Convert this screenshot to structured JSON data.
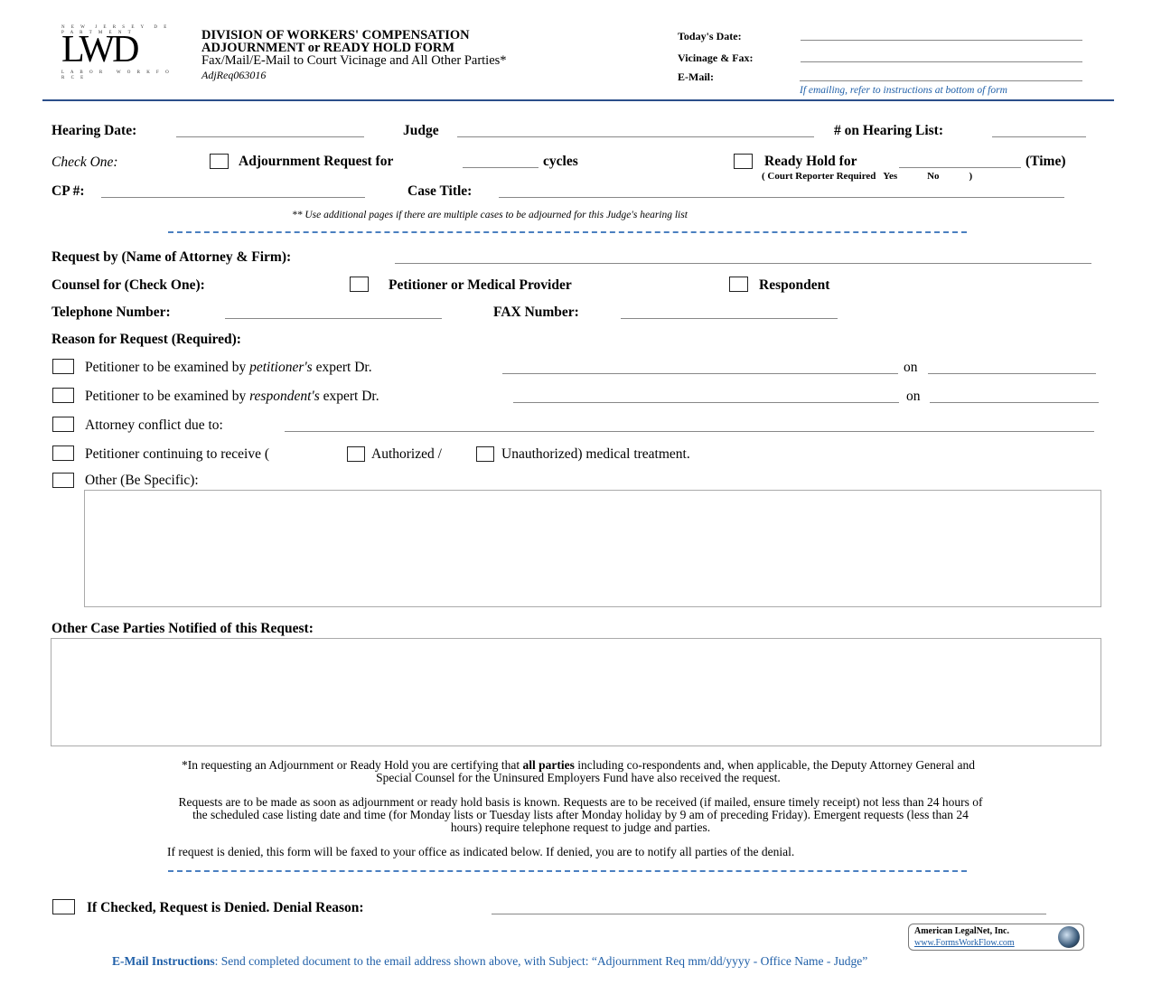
{
  "logo": {
    "text": "LWD"
  },
  "header": {
    "title1": "DIVISION OF WORKERS' COMPENSATION",
    "title2": "ADJOURNMENT or READY HOLD FORM",
    "subtitle": "Fax/Mail/E-Mail to Court Vicinage and All Other Parties*",
    "form_id": "AdjReq063016",
    "todays_date_label": "Today's Date:",
    "vicinage_label": "Vicinage & Fax:",
    "email_label": "E-Mail:",
    "email_note": "If emailing, refer to instructions at bottom of form"
  },
  "row1": {
    "hearing_date": "Hearing Date:",
    "judge": "Judge",
    "hearing_list": "# on Hearing List:"
  },
  "row2": {
    "check_one": "Check One:",
    "adjournment": "Adjournment Request for",
    "cycles": "cycles",
    "ready_hold": "Ready Hold for",
    "time": "(Time)",
    "court_reporter": "( Court Reporter Required   Yes            No            )"
  },
  "row3": {
    "cp": "CP #:",
    "case_title": "Case Title:",
    "note": "** Use additional pages if there are multiple cases to be adjourned for this Judge's hearing list"
  },
  "request": {
    "request_by": "Request by (Name of Attorney & Firm):",
    "counsel_for": "Counsel for (Check One):",
    "petitioner": "Petitioner or Medical Provider",
    "respondent": "Respondent",
    "telephone": "Telephone Number:",
    "fax": "FAX Number:",
    "reason": "Reason for Request (Required):"
  },
  "reasons": {
    "r1a": "Petitioner to be examined by ",
    "r1b": "petitioner's",
    "r1c": " expert Dr.",
    "r2a": "Petitioner to be examined by ",
    "r2b": "respondent's",
    "r2c": " expert Dr.",
    "on": "on",
    "r3": "Attorney conflict due to:",
    "r4a": "Petitioner continuing to receive (",
    "r4b": "Authorized /",
    "r4c": "Unauthorized) medical treatment.",
    "r5": "Other (Be Specific):"
  },
  "parties": {
    "label": "Other Case Parties Notified of this Request:"
  },
  "footer": {
    "cert1": "*In requesting an Adjournment or Ready Hold you are certifying that ",
    "cert_bold": "all parties",
    "cert2": " including co-respondents and, when applicable, the Deputy Attorney General and",
    "cert3": "Special Counsel for the Uninsured Employers Fund have also received the request.",
    "req1": "Requests are to be made as soon as adjournment or ready hold basis is known.  Requests are to be received (if mailed, ensure timely receipt) not less than 24 hours of",
    "req2": "the scheduled case listing date and time (for Monday lists or Tuesday lists after Monday holiday by 9 am of preceding Friday).  Emergent requests (less than 24",
    "req3": "hours) require telephone request to judge and parties.",
    "denied_note": "If request is denied, this form will be faxed to your office as indicated below.  If denied, you are to notify all parties of the denial.",
    "denied_label": "If Checked, Request is Denied.  Denial Reason:",
    "legalnet_name": "American LegalNet, Inc.",
    "legalnet_url": "www.FormsWorkFlow.com",
    "email_instr_label": "E-Mail Instructions",
    "email_instr": ": Send completed document to the email address shown above, with Subject:  “Adjournment Req mm/dd/yyyy - Office Name - Judge”"
  },
  "colors": {
    "accent": "#1f5fa8",
    "rule": "#2b4f8a"
  }
}
